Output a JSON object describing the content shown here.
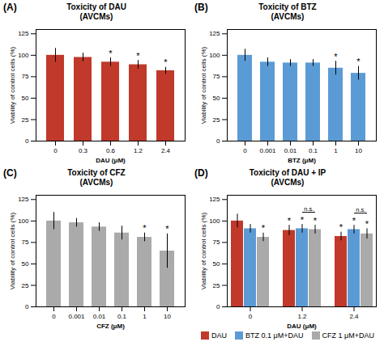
{
  "chart_data": [
    {
      "type": "bar",
      "title": "Toxicity of DAU",
      "subtitle": "(AVCMs)",
      "xlabel": "DAU (μM)",
      "ylabel": "Viability of control cells (%)",
      "categories": [
        "0",
        "0.3",
        "0.6",
        "1.2",
        "2.4"
      ],
      "values": [
        100,
        97.5,
        92,
        89,
        82
      ],
      "errors": [
        8,
        5,
        5,
        5,
        4
      ],
      "color": "#C0392B",
      "ylim": [
        0,
        130
      ],
      "yticks": [
        0,
        25,
        50,
        75,
        100,
        125
      ],
      "annotations": [
        {
          "text": "(A)"
        },
        {
          "text": "*",
          "category": "0.6"
        },
        {
          "text": "*",
          "category": "1.2"
        },
        {
          "text": "*",
          "category": "2.4"
        }
      ]
    },
    {
      "type": "bar",
      "title": "Toxicity of BTZ",
      "subtitle": "(AVCMs)",
      "xlabel": "BTZ (μM)",
      "ylabel": "Viability of control cells (%)",
      "categories": [
        "0",
        "0.001",
        "0.01",
        "0.1",
        "1",
        "10"
      ],
      "values": [
        100,
        92,
        91,
        91,
        85,
        79
      ],
      "errors": [
        7,
        5,
        4,
        4,
        8,
        8
      ],
      "color": "#5B9BD5",
      "ylim": [
        0,
        130
      ],
      "yticks": [
        0,
        25,
        50,
        75,
        100,
        125
      ],
      "annotations": [
        {
          "text": "(B)"
        },
        {
          "text": "*",
          "category": "1"
        },
        {
          "text": "*",
          "category": "10"
        }
      ]
    },
    {
      "type": "bar",
      "title": "Toxicity of CFZ",
      "subtitle": "(AVCMs)",
      "xlabel": "CFZ (μM)",
      "ylabel": "Viability of control cells (%)",
      "categories": [
        "0",
        "0.001",
        "0.01",
        "0.1",
        "1",
        "10"
      ],
      "values": [
        100,
        98,
        93,
        86,
        81,
        65
      ],
      "errors": [
        10,
        5,
        5,
        8,
        5,
        20
      ],
      "color": "#AAAAAA",
      "ylim": [
        0,
        130
      ],
      "yticks": [
        0,
        25,
        50,
        75,
        100,
        125
      ],
      "annotations": [
        {
          "text": "(C)"
        },
        {
          "text": "*",
          "category": "1"
        },
        {
          "text": "*",
          "category": "10"
        }
      ]
    },
    {
      "type": "bar",
      "title": "Toxicity of DAU + IP",
      "subtitle": "(AVCMs)",
      "xlabel": "DAU (μM)",
      "ylabel": "Viability of control cells (%)",
      "categories": [
        "0",
        "1.2",
        "2.4"
      ],
      "series": [
        {
          "name": "DAU",
          "color": "#C0392B",
          "values": [
            100,
            89,
            82
          ],
          "errors": [
            8,
            6,
            5
          ]
        },
        {
          "name": "BTZ 0.1 μM+DAU",
          "color": "#5B9BD5",
          "values": [
            91,
            91,
            90
          ],
          "errors": [
            5,
            5,
            5
          ]
        },
        {
          "name": "CFZ 1 μM+DAU",
          "color": "#AAAAAA",
          "values": [
            81,
            90,
            85
          ],
          "errors": [
            5,
            5,
            6
          ]
        }
      ],
      "ylim": [
        0,
        130
      ],
      "yticks": [
        0,
        25,
        50,
        75,
        100,
        125
      ],
      "legend": "bottom",
      "annotations": [
        {
          "text": "(D)"
        },
        {
          "text": "*",
          "category": "1.2",
          "series": "DAU"
        },
        {
          "text": "*",
          "category": "2.4",
          "series": "DAU"
        },
        {
          "text": "*",
          "category": "1.2",
          "series": "BTZ 0.1 μM+DAU"
        },
        {
          "text": "*",
          "category": "2.4",
          "series": "BTZ 0.1 μM+DAU"
        },
        {
          "text": "*",
          "category": "0",
          "series": "CFZ 1 μM+DAU"
        },
        {
          "text": "*",
          "category": "1.2",
          "series": "CFZ 1 μM+DAU"
        },
        {
          "text": "*",
          "category": "2.4",
          "series": "CFZ 1 μM+DAU"
        },
        {
          "text": "n.s.",
          "category": "1.2",
          "series": [
            "BTZ 0.1 μM+DAU",
            "CFZ 1 μM+DAU"
          ]
        },
        {
          "text": "n.s.",
          "category": "2.4",
          "series": [
            "BTZ 0.1 μM+DAU",
            "CFZ 1 μM+DAU"
          ]
        }
      ]
    }
  ]
}
